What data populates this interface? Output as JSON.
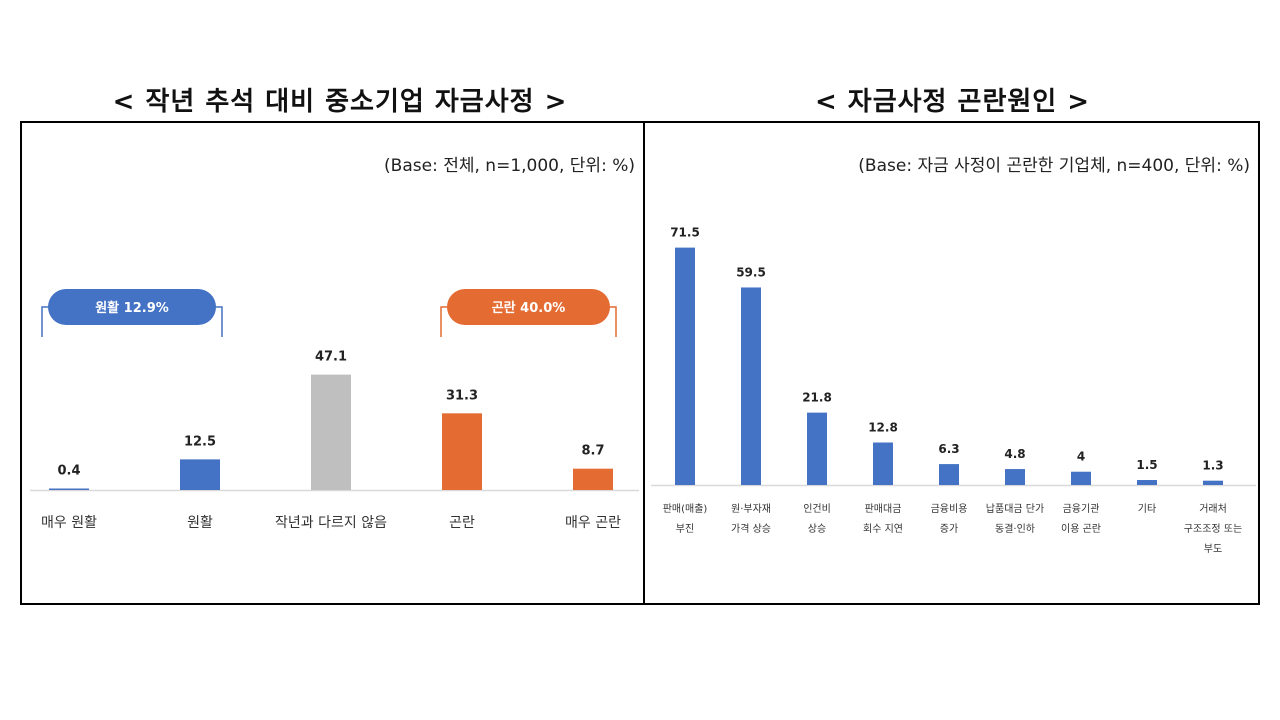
{
  "left": {
    "title": "< 작년 추석 대비 중소기업 자금사정 >",
    "base_note": "(Base: 전체, n=1,000, 단위: %)",
    "group_labels": [
      {
        "text": "원활 12.9%",
        "color": "#4472C4"
      },
      {
        "text": "곤란 40.0%",
        "color": "#E46C32"
      }
    ]
  },
  "right": {
    "title": "< 자금사정 곤란원인 >",
    "base_note": "(Base: 자금 사정이 곤란한 기업체, n=400, 단위: %)"
  },
  "chart_data": [
    {
      "type": "bar",
      "title": "< 작년 추석 대비 중소기업 자금사정 >",
      "categories": [
        "매우 원활",
        "원활",
        "작년과 다르지 않음",
        "곤란",
        "매우 곤란"
      ],
      "values": [
        0.4,
        12.5,
        47.1,
        31.3,
        8.7
      ],
      "colors": [
        "#4472C4",
        "#4472C4",
        "#BFBFBF",
        "#E46C32",
        "#E46C32"
      ],
      "unit": "%"
    },
    {
      "type": "bar",
      "title": "< 자금사정 곤란원인 >",
      "categories": [
        [
          "판매(매출)",
          "부진"
        ],
        [
          "원·부자재",
          "가격 상승"
        ],
        [
          "인건비",
          "상승"
        ],
        [
          "판매대금",
          "회수 지연"
        ],
        [
          "금융비용",
          "증가"
        ],
        [
          "납품대금 단가",
          "동결·인하"
        ],
        [
          "금융기관",
          "이용 곤란"
        ],
        [
          "기타"
        ],
        [
          "거래처",
          "구조조정 또는",
          "부도"
        ]
      ],
      "values": [
        71.5,
        59.5,
        21.8,
        12.8,
        6.3,
        4.8,
        4.0,
        1.5,
        1.3
      ],
      "color": "#4472C4",
      "unit": "%"
    }
  ]
}
